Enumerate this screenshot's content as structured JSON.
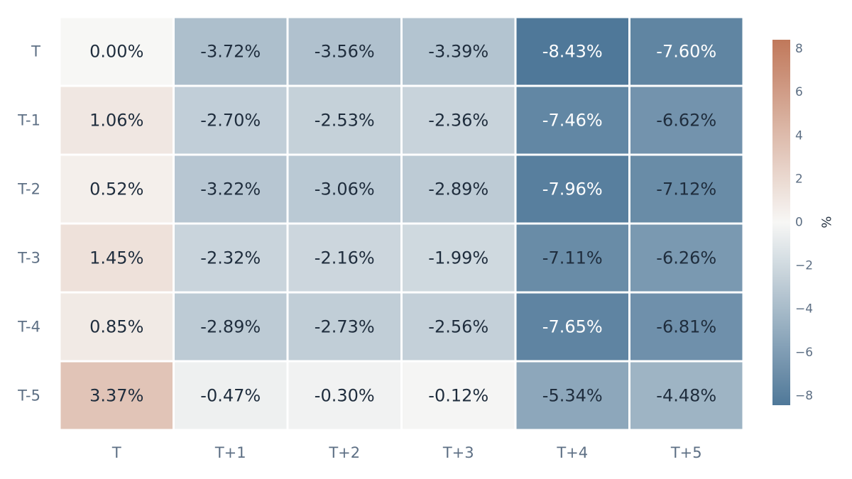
{
  "chart_data": {
    "type": "heatmap",
    "title": "",
    "xlabel": "",
    "ylabel": "",
    "x_categories": [
      "T",
      "T+1",
      "T+2",
      "T+3",
      "T+4",
      "T+5"
    ],
    "y_categories": [
      "T",
      "T-1",
      "T-2",
      "T-3",
      "T-4",
      "T-5"
    ],
    "values": [
      [
        0.0,
        -3.72,
        -3.56,
        -3.39,
        -8.43,
        -7.6
      ],
      [
        1.06,
        -2.7,
        -2.53,
        -2.36,
        -7.46,
        -6.62
      ],
      [
        0.52,
        -3.22,
        -3.06,
        -2.89,
        -7.96,
        -7.12
      ],
      [
        1.45,
        -2.32,
        -2.16,
        -1.99,
        -7.11,
        -6.26
      ],
      [
        0.85,
        -2.89,
        -2.73,
        -2.56,
        -7.65,
        -6.81
      ],
      [
        3.37,
        -0.47,
        -0.3,
        -0.12,
        -5.34,
        -4.48
      ]
    ],
    "labels": [
      [
        "0.00%",
        "-3.72%",
        "-3.56%",
        "-3.39%",
        "-8.43%",
        "-7.60%"
      ],
      [
        "1.06%",
        "-2.70%",
        "-2.53%",
        "-2.36%",
        "-7.46%",
        "-6.62%"
      ],
      [
        "0.52%",
        "-3.22%",
        "-3.06%",
        "-2.89%",
        "-7.96%",
        "-7.12%"
      ],
      [
        "1.45%",
        "-2.32%",
        "-2.16%",
        "-1.99%",
        "-7.11%",
        "-6.26%"
      ],
      [
        "0.85%",
        "-2.89%",
        "-2.73%",
        "-2.56%",
        "-7.65%",
        "-6.81%"
      ],
      [
        "3.37%",
        "-0.47%",
        "-0.30%",
        "-0.12%",
        "-5.34%",
        "-4.48%"
      ]
    ],
    "colorscale": {
      "min": -8.43,
      "max": 8.43,
      "negative_color": "#4f7899",
      "mid_color": "#f7f7f5",
      "positive_color": "#c0785a",
      "title": "%",
      "ticks": [
        8,
        6,
        4,
        2,
        0,
        -2,
        -4,
        -6,
        -8
      ],
      "tick_labels": [
        "8",
        "6",
        "4",
        "2",
        "0",
        "−2",
        "−4",
        "−6",
        "−8"
      ]
    },
    "legend_position": "right",
    "text_color_dark": "#1f2d3d",
    "text_color_light": "#ffffff"
  }
}
